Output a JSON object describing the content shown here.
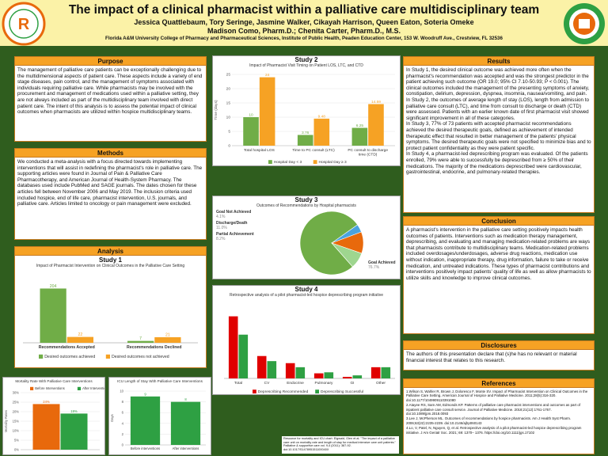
{
  "header": {
    "title": "The impact of a clinical pharmacist within a palliative care multidisciplinary team",
    "authors_line1": "Jessica Quattlebaum, Tory Seringe, Jasmine Walker, Cikayah Harrison, Queen Eaton, Soteria Omeke",
    "authors_line2": "Madison Como, Pharm.D.; Chenita Carter, Pharm.D., M.S.",
    "affiliation": "Florida A&M University College of Pharmacy and Pharmaceutical Sciences, Institute of Public Health, Peaden Education Center, 153 W. Woodruff Ave., Crestview, FL 32536"
  },
  "purpose": {
    "heading": "Purpose",
    "text": "The management of palliative care patients can be exceptionally challenging due to the multidimensional aspects of patient care. These aspects include a variety of end stage diseases, pain control, and the management of symptoms associated with individuals requiring palliative care. While pharmacists may be involved with the procurement and management of medications used within a palliative setting, they are not always included as part of the multidisciplinary team involved with direct patient care. The intent of this analysis is to assess the potential impact of clinical outcomes when pharmacists are utilized within hospice multidisciplinary teams."
  },
  "methods": {
    "heading": "Methods",
    "text": "We conducted a meta-analysis with a focus directed towards implementing interventions that will assist in redefining the pharmacist's role in palliative care. The supporting articles were found in Journal of Pain & Palliative Care Pharmacotherapy, and American Journal of Health-System Pharmacy. The databases used include PubMed and SAGE journals. The dates chosen for these articles fell between November 2006 and May 2019. The inclusion criteria used included hospice, end of life care, pharmacist intervention, U.S. journals, and palliative care. Articles limited to oncology or pain management were excluded."
  },
  "analysis": {
    "heading": "Analysis",
    "study_label": "Study 1"
  },
  "results": {
    "heading": "Results",
    "paragraphs": [
      "In Study 1, the desired clinical outcome was achieved more often when the pharmacist's recommendation was accepted and was the strongest predictor in the patient achieving such outcome (OR 19.0; 95% CI 7.10-50.93; P < 0.001). The clinical outcomes included the management of the presenting symptoms of anxiety, constipation, delirium, depression, dyspnea, insomnia, nausea/vomiting, and pain.",
      "In Study 2, the outcomes of average length of stay (LOS), length from admission to palliative care consult (LTC), and time from consult to discharge or death (CTD) were assessed. Patients with an earlier known date of first pharmacist visit showed significant improvement in all of these categories.",
      "In Study 3, 77% of 73 patients with accepted pharmacist recommendations achieved the desired therapeutic goals, defined as achievement of intended therapeutic effect that resulted in better management of the patients' physical symptoms. The desired therapeutic goals were not specified to minimize bias and to protect patient confidentiality as they were patient specific.",
      "In Study 4, a pharmacist-led deprescribing program was evaluated. Of the patients enrolled, 79% were able to successfully be deprescribed from ≥ 50% of their medications. The majority of the medications deprescribed were cardiovascular, gastrointestinal, endocrine, and pulmonary-related therapies."
    ]
  },
  "conclusion": {
    "heading": "Conclusion",
    "text": "A pharmacist's intervention in the palliative care setting positively impacts health outcomes of patients. Interventions such as medication therapy management, deprescribing, and evaluating and managing medication-related problems are ways that pharmacists contribute to multidisciplinary teams. Medication-related problems included overdosages/underdosages, adverse drug reactions, medication use without indication, inappropriate therapy, drug information, failure to take or receive medication, and untreated indications. These types of pharmacist contributions and interventions positively impact patients' quality of life as well as allow pharmacists to utilize skills and knowledge to improve clinical outcomes."
  },
  "disclosures": {
    "heading": "Disclosures",
    "text": "The authors of this presentation declare that (s)he has no relevant or material financial interest that relates to this research."
  },
  "references": {
    "heading": "References",
    "items": [
      "1.Wilson S, Wahler R, Brown J, Doloresco F, Monte SV. Impact of Pharmacist Intervention on Clinical Outcomes in the Palliative Care Setting. American Journal of Hospice and Palliative Medicine. 2011;28(5):316-320. doi:10.1177/1049909110391080",
      "2.Atayee RS, Sam AM, Edmonds KP. Patterns of palliative care pharmacist interventions and outcomes as part of inpatient palliative care consult service. Journal of Palliative Medicine. 2018;21(12):1761-1767. doi:10.1089/jpm.2018.0093",
      "3.Lee J, McPherson ML. Outcomes of recommendations by hospice pharmacists. Am J Health Syst Pharm. 2006;63(22):2235-2239. doi:10.2146/ajhp060143",
      "4.Lo, V, Patel, N, Nguyen, Q, et al. Retrospective analysis of a pilot pharmacist-led hospice deprescribing program initiative. J Am Geriatr Soc. 2021; 69: 1370– 1376. https://doi.org/10.1111/jgs.17102"
    ]
  },
  "small_note": {
    "text": "Resource for mortality and ICU chart: Elgwaid, Glen et al. \"The impact of a palliative care unit on mortality rate and length of stay for medical intensive care unit patients.\" Palliative & supportive care vol. 9,4 (2011): 387-92. doi:10.1017/S147895151100040X"
  },
  "chart_data": [
    {
      "id": "study1",
      "type": "bar",
      "title": "Impact of Pharmacist Intervention on Clinical Outcomes in the Palliative Care Setting",
      "categories": [
        "Recommendations Accepted",
        "Recommendations Declined"
      ],
      "series": [
        {
          "name": "Desired outcomes achieved",
          "color": "#70ad47",
          "values": [
            204,
            7
          ]
        },
        {
          "name": "Desired outcomes not achieved",
          "color": "#f6a224",
          "values": [
            22,
            21
          ]
        }
      ],
      "ylim": [
        0,
        250
      ],
      "legend": "bottom"
    },
    {
      "id": "study2",
      "type": "bar",
      "title": "Study 2",
      "subtitle": "Impact of Pharmacist Visit Timing on Patient LOS, LTC, and CTD",
      "ylabel": "Time (days)",
      "categories": [
        "Total hospital LOS",
        "Time to PC consult (LTC)",
        "PC consult to discharge time (CTD)"
      ],
      "series": [
        {
          "name": "Hospital Day < 3",
          "color": "#70ad47",
          "values": [
            10,
            3.76,
            6.25
          ]
        },
        {
          "name": "Hospital Day ≥ 3",
          "color": "#f6a224",
          "values": [
            24,
            9.48,
            14.59
          ]
        }
      ],
      "value_labels": [
        [
          "10",
          "3.76",
          "6.25"
        ],
        [
          "24",
          "9.48",
          "14.59"
        ]
      ],
      "yticks": [
        0,
        5,
        10,
        15,
        20,
        25
      ],
      "ylim": [
        0,
        25
      ],
      "legend": "bottom"
    },
    {
      "id": "study3",
      "type": "pie",
      "title": "Study 3",
      "subtitle": "Outcomes of Recommendations by Hospital pharmacists",
      "slices": [
        {
          "name": "Goal Achieved",
          "value": 76.7,
          "label": "76.7%",
          "color": "#70ad47"
        },
        {
          "name": "Goal Not Achieved",
          "value": 4.1,
          "label": "4.1%",
          "color": "#4aa3df"
        },
        {
          "name": "Discharge/Death",
          "value": 11.0,
          "label": "11.0%",
          "color": "#e8690c"
        },
        {
          "name": "Partial Achievement",
          "value": 8.2,
          "label": "8.2%",
          "color": "#9ed68f"
        }
      ]
    },
    {
      "id": "study4",
      "type": "bar",
      "title": "Study 4",
      "subtitle": "Retrospective analysis of a pilot pharmacist-led hospice deprescribing program initiative",
      "categories": [
        "Total",
        "CV",
        "Endocrine",
        "Pulmonary",
        "GI",
        "Other"
      ],
      "series": [
        {
          "name": "Deprescribing Recommended",
          "color": "#e00000",
          "values": [
            6.1,
            2.2,
            1.5,
            0.5,
            0.15,
            1.1
          ]
        },
        {
          "name": "Deprescribing Successful",
          "color": "#2ea043",
          "values": [
            4.3,
            1.7,
            1.1,
            0.6,
            0.3,
            1.1
          ]
        }
      ],
      "ylim": [
        0,
        7
      ],
      "legend": "bottom"
    },
    {
      "id": "mortality",
      "type": "bar",
      "title": "Mortality Rate With Palliative Care Interventions",
      "ylabel": "Mortality Rates",
      "categories": [
        ""
      ],
      "series": [
        {
          "name": "Before Interventions",
          "color": "#e8690c",
          "values": [
            24
          ]
        },
        {
          "name": "After Interventions",
          "color": "#2ea043",
          "values": [
            19
          ]
        }
      ],
      "value_labels": [
        "24%",
        "19%"
      ],
      "yticks": [
        "0%",
        "5%",
        "10%",
        "15%",
        "20%",
        "25%",
        "30%"
      ],
      "ylim": [
        0,
        30
      ],
      "legend": "top"
    },
    {
      "id": "icu",
      "type": "bar",
      "title": "ICU Length of Stay With Palliative Care Interventions",
      "ylabel": "Days",
      "categories": [
        "Before interventions",
        "After interventions"
      ],
      "series": [
        {
          "name": "ICU Length of Stay",
          "color": "#2ea043",
          "values": [
            9,
            8
          ]
        }
      ],
      "value_labels": [
        "9",
        "8"
      ],
      "yticks": [
        0,
        2,
        4,
        6,
        8,
        10
      ],
      "ylim": [
        0,
        10
      ]
    }
  ]
}
